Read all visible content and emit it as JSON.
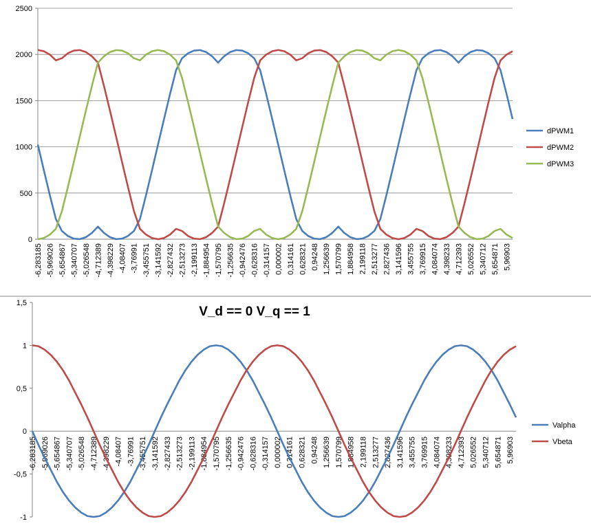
{
  "chart_data": [
    {
      "type": "line",
      "categories": [
        "-6,283185",
        null,
        "-5,969026",
        null,
        "-5,654867",
        null,
        "-5,340707",
        null,
        "-5,026548",
        null,
        "-4,712389",
        null,
        "-4,398229",
        null,
        "-4,08407",
        null,
        "-3,76991",
        null,
        "-3,455751",
        null,
        "-3,141592",
        null,
        "-2,827432",
        null,
        "-2,513273",
        null,
        "-2,199113",
        null,
        "-1,884954",
        null,
        "-1,570795",
        null,
        "-1,256635",
        null,
        "-0,942476",
        null,
        "-0,628316",
        null,
        "-0,314157",
        null,
        "0,000002",
        null,
        "0,314161",
        null,
        "0,628321",
        null,
        "0,94248",
        null,
        "1,256639",
        null,
        "1,570799",
        null,
        "1,884958",
        null,
        "2,199118",
        null,
        "2,513277",
        null,
        "2,827436",
        null,
        "3,141596",
        null,
        "3,455755",
        null,
        "3,769915",
        null,
        "4,084074",
        null,
        "4,398233",
        null,
        "4,712393",
        null,
        "5,026552",
        null,
        "5,340712",
        null,
        "5,654871",
        null,
        "5,96903",
        null
      ],
      "series": [
        {
          "name": "dPWM1",
          "color": "#4a7ebb",
          "values": [
            1024,
            747,
            476,
            219,
            89,
            35,
            6,
            1,
            22,
            68,
            137,
            68,
            22,
            1,
            6,
            35,
            89,
            219,
            476,
            747,
            1024,
            1301,
            1572,
            1829,
            1959,
            2013,
            2042,
            2047,
            2026,
            1980,
            1911,
            1980,
            2026,
            2047,
            2042,
            2013,
            1959,
            1829,
            1572,
            1301,
            1024,
            747,
            476,
            219,
            89,
            35,
            6,
            1,
            22,
            68,
            137,
            68,
            22,
            1,
            6,
            35,
            89,
            219,
            476,
            747,
            1024,
            1301,
            1572,
            1829,
            1959,
            2013,
            2042,
            2047,
            2026,
            1980,
            1911,
            1980,
            2026,
            2047,
            2042,
            2013,
            1959,
            1829,
            1572,
            1301
          ]
        },
        {
          "name": "dPWM2",
          "color": "#be4b48",
          "values": [
            2048,
            2035,
            1998,
            1936,
            1959,
            2013,
            2042,
            2047,
            2026,
            1980,
            1911,
            1660,
            1393,
            1117,
            839,
            565,
            303,
            112,
            50,
            13,
            0,
            13,
            50,
            112,
            89,
            35,
            6,
            1,
            22,
            68,
            137,
            388,
            655,
            931,
            1209,
            1483,
            1745,
            1936,
            1998,
            2035,
            2048,
            2035,
            1998,
            1936,
            1959,
            2013,
            2042,
            2047,
            2026,
            1980,
            1911,
            1660,
            1393,
            1117,
            839,
            565,
            303,
            112,
            50,
            13,
            0,
            13,
            50,
            112,
            89,
            35,
            6,
            1,
            22,
            68,
            137,
            388,
            655,
            931,
            1209,
            1483,
            1745,
            1936,
            1998,
            2035
          ]
        },
        {
          "name": "dPWM3",
          "color": "#98b954",
          "values": [
            0,
            13,
            50,
            112,
            303,
            565,
            839,
            1117,
            1393,
            1660,
            1911,
            1980,
            2026,
            2047,
            2042,
            2013,
            1959,
            1936,
            1998,
            2035,
            2048,
            2035,
            1998,
            1936,
            1745,
            1483,
            1209,
            931,
            655,
            388,
            137,
            68,
            22,
            1,
            6,
            35,
            89,
            112,
            50,
            13,
            0,
            13,
            50,
            112,
            303,
            565,
            839,
            1117,
            1393,
            1660,
            1911,
            1980,
            2026,
            2047,
            2042,
            2013,
            1959,
            1936,
            1998,
            2035,
            2048,
            2035,
            1998,
            1936,
            1745,
            1483,
            1209,
            931,
            655,
            388,
            137,
            68,
            22,
            1,
            6,
            35,
            89,
            112,
            50,
            13
          ]
        }
      ],
      "ylim": [
        0,
        2500
      ],
      "yticks": [
        0,
        500,
        1000,
        1500,
        2000,
        2500
      ],
      "grid": true,
      "legend": "right"
    },
    {
      "type": "line",
      "title": "V_d == 0   V_q ==  1",
      "categories": [
        "-6,283185",
        null,
        "-5,969026",
        null,
        "-5,654867",
        null,
        "-5,340707",
        null,
        "-5,026548",
        null,
        "-4,712389",
        null,
        "-4,398229",
        null,
        "-4,08407",
        null,
        "-3,76991",
        null,
        "-3,455751",
        null,
        "-3,141592",
        null,
        "-2,827433",
        null,
        "-2,513273",
        null,
        "-2,199113",
        null,
        "-1,884954",
        null,
        "-1,570795",
        null,
        "-1,256635",
        null,
        "-0,942476",
        null,
        "-0,628316",
        null,
        "-0,314157",
        null,
        "0,000002",
        null,
        "0,314161",
        null,
        "0,628321",
        null,
        "0,94248",
        null,
        "1,256639",
        null,
        "1,570799",
        null,
        "1,884958",
        null,
        "2,199118",
        null,
        "2,513277",
        null,
        "2,827436",
        null,
        "3,141596",
        null,
        "3,455755",
        null,
        "3,769915",
        null,
        "4,084074",
        null,
        "4,398233",
        null,
        "4,712393",
        null,
        "5,026552",
        null,
        "5,340712",
        null,
        "5,654871",
        null,
        "5,96903",
        null
      ],
      "series": [
        {
          "name": "Valpha",
          "color": "#4a7ebb",
          "values": [
            0,
            -0.16,
            -0.31,
            -0.45,
            -0.59,
            -0.71,
            -0.81,
            -0.89,
            -0.95,
            -0.99,
            -1,
            -0.99,
            -0.95,
            -0.89,
            -0.81,
            -0.71,
            -0.59,
            -0.45,
            -0.31,
            -0.16,
            0,
            0.16,
            0.31,
            0.45,
            0.59,
            0.71,
            0.81,
            0.89,
            0.95,
            0.99,
            1,
            0.99,
            0.95,
            0.89,
            0.81,
            0.71,
            0.59,
            0.45,
            0.31,
            0.16,
            0,
            -0.16,
            -0.31,
            -0.45,
            -0.59,
            -0.71,
            -0.81,
            -0.89,
            -0.95,
            -0.99,
            -1,
            -0.99,
            -0.95,
            -0.89,
            -0.81,
            -0.71,
            -0.59,
            -0.45,
            -0.31,
            -0.16,
            0,
            0.16,
            0.31,
            0.45,
            0.59,
            0.71,
            0.81,
            0.89,
            0.95,
            0.99,
            1,
            0.99,
            0.95,
            0.89,
            0.81,
            0.71,
            0.59,
            0.45,
            0.31,
            0.16
          ]
        },
        {
          "name": "Vbeta",
          "color": "#be4b48",
          "values": [
            1,
            0.99,
            0.95,
            0.89,
            0.81,
            0.71,
            0.59,
            0.45,
            0.31,
            0.16,
            0,
            -0.16,
            -0.31,
            -0.45,
            -0.59,
            -0.71,
            -0.81,
            -0.89,
            -0.95,
            -0.99,
            -1,
            -0.99,
            -0.95,
            -0.89,
            -0.81,
            -0.71,
            -0.59,
            -0.45,
            -0.31,
            -0.16,
            0,
            0.16,
            0.31,
            0.45,
            0.59,
            0.71,
            0.81,
            0.89,
            0.95,
            0.99,
            1,
            0.99,
            0.95,
            0.89,
            0.81,
            0.71,
            0.59,
            0.45,
            0.31,
            0.16,
            0,
            -0.16,
            -0.31,
            -0.45,
            -0.59,
            -0.71,
            -0.81,
            -0.89,
            -0.95,
            -0.99,
            -1,
            -0.99,
            -0.95,
            -0.89,
            -0.81,
            -0.71,
            -0.59,
            -0.45,
            -0.31,
            -0.16,
            0,
            0.16,
            0.31,
            0.45,
            0.59,
            0.71,
            0.81,
            0.89,
            0.95,
            0.99
          ]
        }
      ],
      "ylim": [
        -1,
        1.5
      ],
      "yticks": [
        -1,
        {
          "value": -0.5,
          "label": "-0,5"
        },
        0,
        {
          "value": 0.5,
          "label": "0,5"
        },
        1,
        {
          "value": 1.5,
          "label": "1,5"
        }
      ],
      "grid": false,
      "legend": "right"
    }
  ]
}
